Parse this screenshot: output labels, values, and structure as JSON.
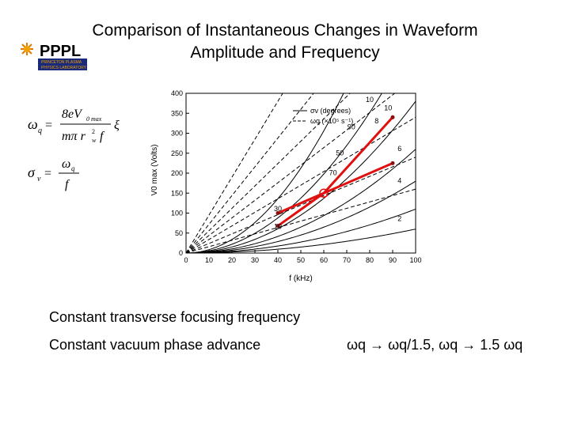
{
  "slide": {
    "title_line1": "Comparison of Instantaneous Changes in Waveform",
    "title_line2": "Amplitude and Frequency",
    "logo_text": "PPPL",
    "logo_sub1": "PRINCETON PLASMA",
    "logo_sub2": "PHYSICS LABORATORY",
    "caption1": "Constant transverse focusing frequency",
    "caption2": "Constant vacuum phase advance",
    "caption3": "ωq → ωq/1.5, ωq → 1.5 ωq"
  },
  "formulas": {
    "f1_lhs": "ω",
    "f1_lhs_sub": "q",
    "f1_num": "8eV",
    "f1_num_sub": "0 max",
    "f1_den": "mπ r",
    "f1_den_sub": "w",
    "f1_den_sup": "2",
    "f1_den_tail": "f",
    "f1_tail": "ξ",
    "f2_lhs": "σ",
    "f2_lhs_sub": "v",
    "f2_num": "ω",
    "f2_num_sub": "q",
    "f2_den": "f"
  },
  "chart_data": {
    "type": "line",
    "xlabel": "f (kHz)",
    "ylabel": "V0 max (Volts)",
    "xlim": [
      0,
      100
    ],
    "ylim": [
      0,
      400
    ],
    "xticks": [
      0,
      10,
      20,
      30,
      40,
      50,
      60,
      70,
      80,
      90,
      100
    ],
    "yticks": [
      0,
      50,
      100,
      150,
      200,
      250,
      300,
      350,
      400
    ],
    "legend": [
      "σv (degrees)",
      "ωq (×10⁵ s⁻¹)"
    ],
    "legend_position": "top-right",
    "solid_labels": [
      "10",
      "30",
      "50",
      "70",
      "90",
      "10"
    ],
    "dashed_labels": [
      "2",
      "4",
      "6",
      "8",
      "10"
    ],
    "red_paths": [
      {
        "name": "upper",
        "points": [
          [
            40,
            100
          ],
          [
            60,
            150
          ],
          [
            90,
            340
          ]
        ]
      },
      {
        "name": "lower",
        "points": [
          [
            40,
            68
          ],
          [
            60,
            150
          ],
          [
            90,
            225
          ]
        ]
      }
    ],
    "center_point": [
      60,
      150
    ]
  }
}
